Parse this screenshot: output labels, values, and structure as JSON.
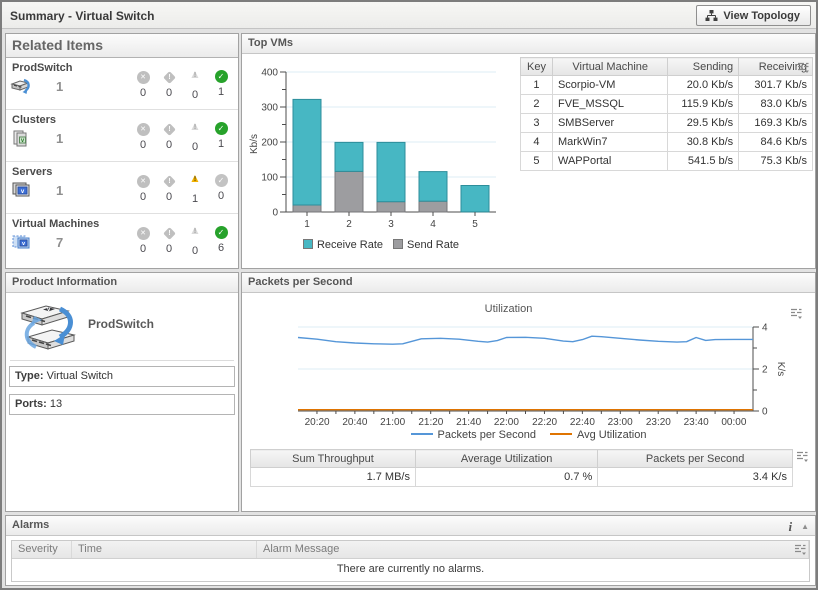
{
  "header": {
    "title": "Summary - Virtual Switch",
    "view_topology_label": "View Topology"
  },
  "icons": {
    "view_topology": "topology-icon",
    "customizer": "customizer-icon",
    "info": "info-icon",
    "collapse": "collapse-up-icon",
    "fatal": "circle-x-icon",
    "critical": "diamond-exclamation-icon",
    "warning": "triangle-exclamation-icon",
    "normal": "circle-check-icon"
  },
  "related_items": {
    "title": "Related Items",
    "items": [
      {
        "name": "ProdSwitch",
        "icon": "virtual-switch-icon",
        "count": "1",
        "statuses": [
          {
            "type": "fatal",
            "count": "0",
            "active": false
          },
          {
            "type": "critical",
            "count": "0",
            "active": false
          },
          {
            "type": "warning",
            "count": "0",
            "active": false
          },
          {
            "type": "normal",
            "count": "1",
            "active": true
          }
        ]
      },
      {
        "name": "Clusters",
        "icon": "cluster-icon",
        "count": "1",
        "statuses": [
          {
            "type": "fatal",
            "count": "0",
            "active": false
          },
          {
            "type": "critical",
            "count": "0",
            "active": false
          },
          {
            "type": "warning",
            "count": "0",
            "active": false
          },
          {
            "type": "normal",
            "count": "1",
            "active": true
          }
        ]
      },
      {
        "name": "Servers",
        "icon": "server-icon",
        "count": "1",
        "statuses": [
          {
            "type": "fatal",
            "count": "0",
            "active": false
          },
          {
            "type": "critical",
            "count": "0",
            "active": false
          },
          {
            "type": "warning",
            "count": "1",
            "active": true
          },
          {
            "type": "normal",
            "count": "0",
            "active": false
          }
        ]
      },
      {
        "name": "Virtual Machines",
        "icon": "virtual-machine-icon",
        "count": "7",
        "statuses": [
          {
            "type": "fatal",
            "count": "0",
            "active": false
          },
          {
            "type": "critical",
            "count": "0",
            "active": false
          },
          {
            "type": "warning",
            "count": "0",
            "active": false
          },
          {
            "type": "normal",
            "count": "6",
            "active": true
          }
        ]
      }
    ]
  },
  "top_vms": {
    "title": "Top VMs",
    "table": {
      "columns": [
        "Key",
        "Virtual Machine",
        "Sending",
        "Receiving"
      ],
      "rows": [
        [
          "1",
          "Scorpio-VM",
          "20.0 Kb/s",
          "301.7 Kb/s"
        ],
        [
          "2",
          "FVE_MSSQL",
          "115.9 Kb/s",
          "83.0 Kb/s"
        ],
        [
          "3",
          "SMBServer",
          "29.5 Kb/s",
          "169.3 Kb/s"
        ],
        [
          "4",
          "MarkWin7",
          "30.8 Kb/s",
          "84.6 Kb/s"
        ],
        [
          "5",
          "WAPPortal",
          "541.5 b/s",
          "75.3 Kb/s"
        ]
      ]
    }
  },
  "product_information": {
    "title": "Product Information",
    "name": "ProdSwitch",
    "fields": [
      {
        "label": "Type:",
        "value": "Virtual Switch"
      },
      {
        "label": "Ports:",
        "value": "13"
      }
    ]
  },
  "packets_per_second": {
    "title": "Packets per Second",
    "chart_title": "Utilization",
    "summary": {
      "columns": [
        "Sum Throughput",
        "Average Utilization",
        "Packets per Second"
      ],
      "values": [
        "1.7 MB/s",
        "0.7 %",
        "3.4 K/s"
      ]
    }
  },
  "alarms": {
    "title": "Alarms",
    "columns": [
      "Severity",
      "Time",
      "Alarm Message"
    ],
    "empty_message": "There are currently no alarms."
  },
  "colors": {
    "receive_teal": "#47b7c3",
    "receive_teal_border": "#2d8e9b",
    "send_gray": "#9d9da0",
    "send_gray_border": "#77777a",
    "line_blue": "#5596d8",
    "line_orange": "#df7401",
    "axis": "#4d4d4d",
    "gridline": "#ddeef4",
    "normal_green": "#27a22b",
    "warning_yellow": "#f2b200"
  },
  "chart_data": [
    {
      "id": "top_vms_bar",
      "type": "bar",
      "stacked": true,
      "categories": [
        "1",
        "2",
        "3",
        "4",
        "5"
      ],
      "series": [
        {
          "name": "Send Rate",
          "color": "#9d9da0",
          "values": [
            20.0,
            115.9,
            29.5,
            30.8,
            0.5
          ]
        },
        {
          "name": "Receive Rate",
          "color": "#47b7c3",
          "values": [
            301.7,
            83.0,
            169.3,
            84.6,
            75.3
          ]
        }
      ],
      "ylabel": "Kb/s",
      "ylim": [
        0,
        400
      ],
      "yticks": [
        0,
        100,
        200,
        300,
        400
      ],
      "legend": [
        "Receive Rate",
        "Send Rate"
      ],
      "legend_position": "bottom",
      "grid": true
    },
    {
      "id": "utilization_line",
      "type": "line",
      "title": "Utilization",
      "ylabel": "K/s",
      "ylim": [
        0,
        4
      ],
      "yticks": [
        0,
        2,
        4
      ],
      "y_axis_side": "right",
      "x_range_minutes": 240,
      "xticks": [
        {
          "label": "20:20",
          "f": 0.042
        },
        {
          "label": "20:40",
          "f": 0.125
        },
        {
          "label": "21:00",
          "f": 0.208
        },
        {
          "label": "21:20",
          "f": 0.292
        },
        {
          "label": "21:40",
          "f": 0.375
        },
        {
          "label": "22:00",
          "f": 0.458
        },
        {
          "label": "22:20",
          "f": 0.542
        },
        {
          "label": "22:40",
          "f": 0.625
        },
        {
          "label": "23:00",
          "f": 0.708
        },
        {
          "label": "23:20",
          "f": 0.792
        },
        {
          "label": "23:40",
          "f": 0.875
        },
        {
          "label": "00:00",
          "f": 0.958
        }
      ],
      "series": [
        {
          "name": "Packets per Second",
          "color": "#5596d8",
          "points": [
            [
              0.0,
              3.5
            ],
            [
              0.042,
              3.42
            ],
            [
              0.083,
              3.3
            ],
            [
              0.125,
              3.24
            ],
            [
              0.167,
              3.2
            ],
            [
              0.208,
              3.18
            ],
            [
              0.23,
              3.2
            ],
            [
              0.271,
              3.44
            ],
            [
              0.313,
              3.46
            ],
            [
              0.354,
              3.42
            ],
            [
              0.396,
              3.32
            ],
            [
              0.417,
              3.28
            ],
            [
              0.438,
              3.35
            ],
            [
              0.458,
              3.5
            ],
            [
              0.5,
              3.51
            ],
            [
              0.542,
              3.46
            ],
            [
              0.583,
              3.33
            ],
            [
              0.604,
              3.3
            ],
            [
              0.625,
              3.4
            ],
            [
              0.646,
              3.56
            ],
            [
              0.667,
              3.54
            ],
            [
              0.708,
              3.46
            ],
            [
              0.75,
              3.38
            ],
            [
              0.792,
              3.32
            ],
            [
              0.833,
              3.28
            ],
            [
              0.854,
              3.3
            ],
            [
              0.875,
              3.5
            ],
            [
              0.896,
              3.36
            ],
            [
              0.917,
              3.4
            ],
            [
              0.958,
              3.41
            ],
            [
              1.0,
              3.41
            ]
          ]
        },
        {
          "name": "Avg Utilization",
          "color": "#df7401",
          "points": [
            [
              0.0,
              0.06
            ],
            [
              1.0,
              0.06
            ]
          ]
        }
      ],
      "legend": [
        "Packets per Second",
        "Avg Utilization"
      ],
      "legend_position": "bottom",
      "grid": true
    }
  ]
}
